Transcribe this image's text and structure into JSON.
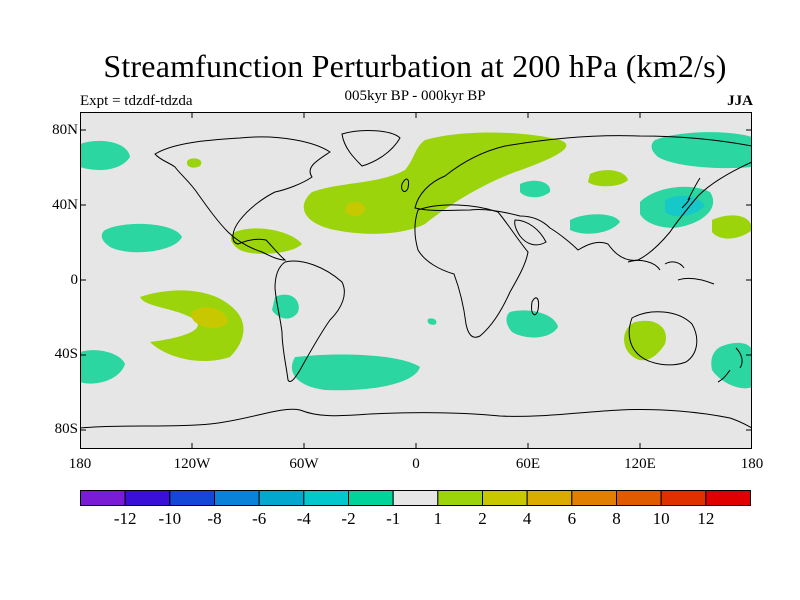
{
  "header": {
    "title": "Streamfunction Perturbation at 200 hPa (km2/s)",
    "subtitle": "005kyr BP - 000kyr BP",
    "left_label": "Expt = tdzdf-tdzda",
    "right_label": "JJA"
  },
  "axes": {
    "y_ticks": [
      "80N",
      "40N",
      "0",
      "40S",
      "80S"
    ],
    "x_ticks": [
      "180",
      "120W",
      "60W",
      "0",
      "60E",
      "120E",
      "180"
    ]
  },
  "colorbar": {
    "labels": [
      "-12",
      "-10",
      "-8",
      "-6",
      "-4",
      "-2",
      "-1",
      "1",
      "2",
      "4",
      "6",
      "8",
      "10",
      "12"
    ],
    "colors": [
      "#7a1bd6",
      "#3a10d8",
      "#1446d8",
      "#0a82da",
      "#03a8cf",
      "#00c8cc",
      "#00d49a",
      "#e6e6e6",
      "#9bd40a",
      "#c8c800",
      "#dcab00",
      "#e07f00",
      "#e05a00",
      "#e03000",
      "#e00000"
    ]
  },
  "colors": {
    "ocean": "#e6e6e6",
    "neg_weak": "#2bd6a0",
    "neg_mid": "#16c8c8",
    "pos_weak": "#9bd40a",
    "pos_mid": "#c8c800",
    "pos_strong": "#dcab00",
    "coast": "#000000"
  }
}
